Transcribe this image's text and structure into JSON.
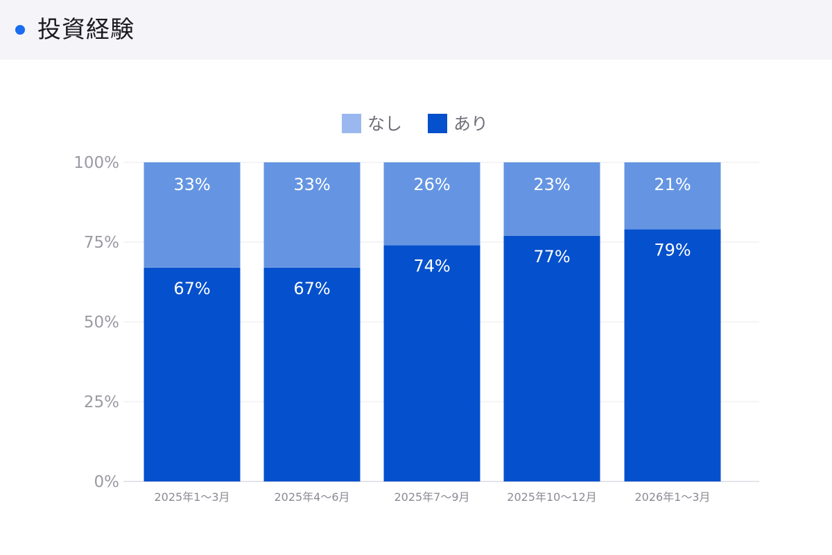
{
  "header": {
    "title": "投資経験"
  },
  "chart_data": {
    "type": "bar",
    "stacked": true,
    "categories": [
      "2025年1〜3月",
      "2025年4〜6月",
      "2025年7〜9月",
      "2025年10〜12月",
      "2026年1〜3月"
    ],
    "series": [
      {
        "name": "あり",
        "values": [
          67,
          67,
          74,
          77,
          79
        ],
        "labels": [
          "67%",
          "67%",
          "74%",
          "77%",
          "79%"
        ],
        "color": "#0550cc"
      },
      {
        "name": "なし",
        "values": [
          33,
          33,
          26,
          23,
          21
        ],
        "labels": [
          "33%",
          "33%",
          "26%",
          "23%",
          "21%"
        ],
        "color": "#6595e2"
      }
    ],
    "legend": [
      {
        "name": "なし",
        "color": "#9ab8ef"
      },
      {
        "name": "あり",
        "color": "#0550cc"
      }
    ],
    "legend_position": "top-center",
    "yticks": [
      "0%",
      "25%",
      "50%",
      "75%",
      "100%"
    ],
    "ylim": [
      0,
      100
    ],
    "grid": true
  }
}
